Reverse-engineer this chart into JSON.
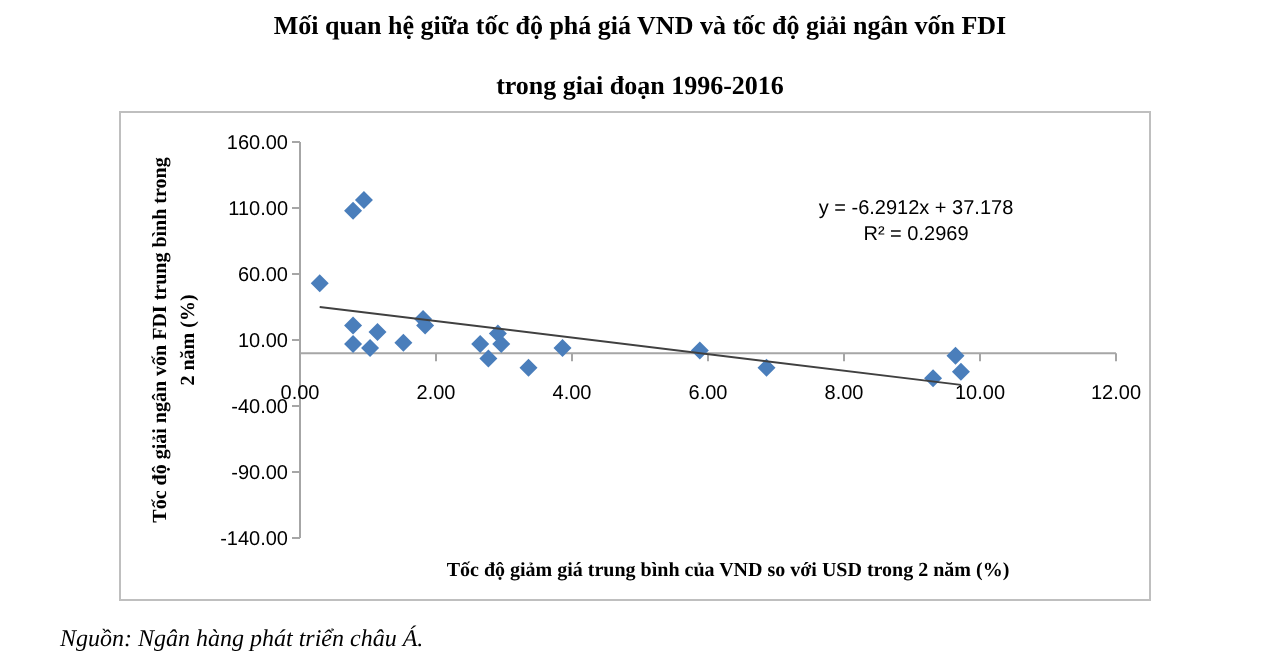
{
  "chart_data": {
    "type": "scatter",
    "title": "Mối quan hệ giữa tốc độ phá giá VND và tốc độ giải ngân vốn FDI",
    "subtitle": "trong giai đoạn 1996-2016",
    "xlabel": "Tốc độ giảm giá trung bình của VND so với USD trong 2 năm (%)",
    "ylabel": "Tốc độ giải ngân vốn FDI trung bình trong 2 năm (%)",
    "xlim": [
      0,
      12
    ],
    "xticks": [
      {
        "value": 0,
        "label": "0.00"
      },
      {
        "value": 2,
        "label": "2.00"
      },
      {
        "value": 4,
        "label": "4.00"
      },
      {
        "value": 6,
        "label": "6.00"
      },
      {
        "value": 8,
        "label": "8.00"
      },
      {
        "value": 10,
        "label": "10.00"
      },
      {
        "value": 12,
        "label": "12.00"
      }
    ],
    "ylim": [
      -140,
      160
    ],
    "yticks": [
      {
        "value": -140,
        "label": "-140.00"
      },
      {
        "value": -90,
        "label": "-90.00"
      },
      {
        "value": -40,
        "label": "-40.00"
      },
      {
        "value": 10,
        "label": "10.00"
      },
      {
        "value": 60,
        "label": "60.00"
      },
      {
        "value": 110,
        "label": "110.00"
      },
      {
        "value": 160,
        "label": "160.00"
      }
    ],
    "grid": false,
    "series": [
      {
        "color": "#4a7ebb",
        "marker": "diamond",
        "x": [
          0.29,
          0.78,
          0.94,
          0.78,
          0.78,
          1.03,
          1.14,
          1.52,
          1.81,
          1.84,
          2.65,
          2.77,
          2.91,
          2.96,
          3.36,
          3.86,
          5.88,
          6.86,
          9.31,
          9.64,
          9.72
        ],
        "values": [
          53,
          108,
          116,
          21,
          7,
          4,
          16,
          8,
          26,
          21,
          7,
          -4,
          15,
          7,
          -11,
          4,
          2,
          -11,
          -19,
          -2,
          -14
        ]
      },
      {
        "type": "line",
        "color": "#404040",
        "x": [
          0.29,
          9.72
        ],
        "values": [
          35,
          -24
        ]
      }
    ],
    "annotations": [
      "y = -6.2912x + 37.178",
      "R² = 0.2969",
      "Nguồn: Ngân hàng phát triển châu Á."
    ]
  }
}
